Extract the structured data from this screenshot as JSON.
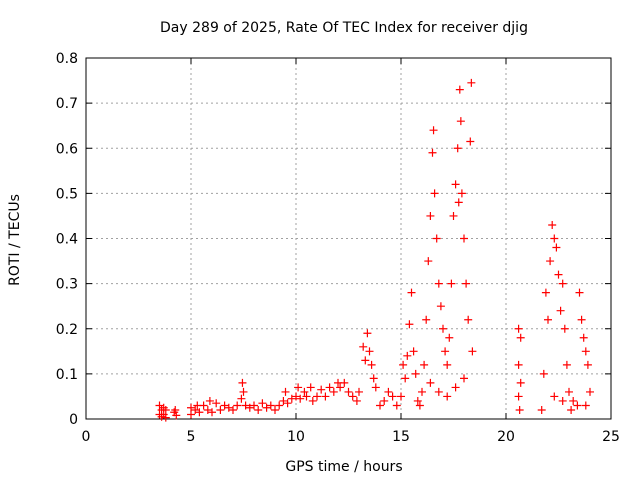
{
  "chart_data": {
    "type": "scatter",
    "title": "Day 289 of 2025, Rate Of TEC Index for receiver djig",
    "xlabel": "GPS time / hours",
    "ylabel": "ROTI / TECUs",
    "xlim": [
      0,
      25
    ],
    "ylim": [
      0,
      0.8
    ],
    "xticks": [
      "0",
      "5",
      "10",
      "15",
      "20",
      "25"
    ],
    "yticks": [
      "0",
      "0.1",
      "0.2",
      "0.3",
      "0.4",
      "0.5",
      "0.6",
      "0.7",
      "0.8"
    ],
    "grid": true,
    "marker": "+",
    "color": "#ff0000",
    "points": [
      [
        3.5,
        0.03
      ],
      [
        3.5,
        0.01
      ],
      [
        3.6,
        0.02
      ],
      [
        3.6,
        0.005
      ],
      [
        3.7,
        0.025
      ],
      [
        3.7,
        0.01
      ],
      [
        3.8,
        0.02
      ],
      [
        3.8,
        0.003
      ],
      [
        4.2,
        0.015
      ],
      [
        4.25,
        0.02
      ],
      [
        4.3,
        0.008
      ],
      [
        5.0,
        0.01
      ],
      [
        5.0,
        0.025
      ],
      [
        5.2,
        0.02
      ],
      [
        5.3,
        0.03
      ],
      [
        5.4,
        0.015
      ],
      [
        5.6,
        0.03
      ],
      [
        5.8,
        0.02
      ],
      [
        5.9,
        0.04
      ],
      [
        6.0,
        0.015
      ],
      [
        6.2,
        0.035
      ],
      [
        6.4,
        0.02
      ],
      [
        6.6,
        0.03
      ],
      [
        6.8,
        0.025
      ],
      [
        7.0,
        0.02
      ],
      [
        7.2,
        0.03
      ],
      [
        7.4,
        0.045
      ],
      [
        7.45,
        0.08
      ],
      [
        7.5,
        0.06
      ],
      [
        7.6,
        0.03
      ],
      [
        7.8,
        0.025
      ],
      [
        8.0,
        0.03
      ],
      [
        8.2,
        0.02
      ],
      [
        8.4,
        0.035
      ],
      [
        8.6,
        0.025
      ],
      [
        8.8,
        0.03
      ],
      [
        9.0,
        0.02
      ],
      [
        9.2,
        0.03
      ],
      [
        9.4,
        0.04
      ],
      [
        9.5,
        0.06
      ],
      [
        9.6,
        0.035
      ],
      [
        9.8,
        0.045
      ],
      [
        10.0,
        0.05
      ],
      [
        10.1,
        0.07
      ],
      [
        10.2,
        0.045
      ],
      [
        10.4,
        0.06
      ],
      [
        10.5,
        0.05
      ],
      [
        10.7,
        0.07
      ],
      [
        10.8,
        0.04
      ],
      [
        11.0,
        0.05
      ],
      [
        11.2,
        0.065
      ],
      [
        11.4,
        0.05
      ],
      [
        11.6,
        0.07
      ],
      [
        11.8,
        0.06
      ],
      [
        12.0,
        0.08
      ],
      [
        12.1,
        0.07
      ],
      [
        12.3,
        0.08
      ],
      [
        12.5,
        0.06
      ],
      [
        12.7,
        0.05
      ],
      [
        12.9,
        0.04
      ],
      [
        13.0,
        0.06
      ],
      [
        13.2,
        0.16
      ],
      [
        13.3,
        0.13
      ],
      [
        13.4,
        0.19
      ],
      [
        13.5,
        0.15
      ],
      [
        13.6,
        0.12
      ],
      [
        13.7,
        0.09
      ],
      [
        13.8,
        0.07
      ],
      [
        14.0,
        0.03
      ],
      [
        14.2,
        0.04
      ],
      [
        14.4,
        0.06
      ],
      [
        14.6,
        0.05
      ],
      [
        14.8,
        0.03
      ],
      [
        15.0,
        0.05
      ],
      [
        15.1,
        0.12
      ],
      [
        15.2,
        0.09
      ],
      [
        15.3,
        0.14
      ],
      [
        15.4,
        0.21
      ],
      [
        15.5,
        0.28
      ],
      [
        15.6,
        0.15
      ],
      [
        15.7,
        0.1
      ],
      [
        15.8,
        0.04
      ],
      [
        15.9,
        0.03
      ],
      [
        16.0,
        0.06
      ],
      [
        16.1,
        0.12
      ],
      [
        16.2,
        0.22
      ],
      [
        16.3,
        0.35
      ],
      [
        16.4,
        0.45
      ],
      [
        16.5,
        0.59
      ],
      [
        16.55,
        0.64
      ],
      [
        16.6,
        0.5
      ],
      [
        16.7,
        0.4
      ],
      [
        16.8,
        0.3
      ],
      [
        16.9,
        0.25
      ],
      [
        17.0,
        0.2
      ],
      [
        17.1,
        0.15
      ],
      [
        17.2,
        0.12
      ],
      [
        17.3,
        0.18
      ],
      [
        17.4,
        0.3
      ],
      [
        17.5,
        0.45
      ],
      [
        17.6,
        0.52
      ],
      [
        17.7,
        0.6
      ],
      [
        17.75,
        0.48
      ],
      [
        17.8,
        0.73
      ],
      [
        17.85,
        0.66
      ],
      [
        17.9,
        0.5
      ],
      [
        18.0,
        0.4
      ],
      [
        18.1,
        0.3
      ],
      [
        18.2,
        0.22
      ],
      [
        18.3,
        0.615
      ],
      [
        18.35,
        0.745
      ],
      [
        18.4,
        0.15
      ],
      [
        16.4,
        0.08
      ],
      [
        16.8,
        0.06
      ],
      [
        17.2,
        0.05
      ],
      [
        17.6,
        0.07
      ],
      [
        18.0,
        0.09
      ],
      [
        20.6,
        0.2
      ],
      [
        20.7,
        0.18
      ],
      [
        20.6,
        0.12
      ],
      [
        20.7,
        0.08
      ],
      [
        20.6,
        0.05
      ],
      [
        20.65,
        0.02
      ],
      [
        21.7,
        0.02
      ],
      [
        21.8,
        0.1
      ],
      [
        21.9,
        0.28
      ],
      [
        22.0,
        0.22
      ],
      [
        22.1,
        0.35
      ],
      [
        22.2,
        0.43
      ],
      [
        22.3,
        0.4
      ],
      [
        22.4,
        0.38
      ],
      [
        22.5,
        0.32
      ],
      [
        22.6,
        0.24
      ],
      [
        22.7,
        0.3
      ],
      [
        22.8,
        0.2
      ],
      [
        22.9,
        0.12
      ],
      [
        23.0,
        0.06
      ],
      [
        23.2,
        0.04
      ],
      [
        23.4,
        0.03
      ],
      [
        23.5,
        0.28
      ],
      [
        23.6,
        0.22
      ],
      [
        23.7,
        0.18
      ],
      [
        23.8,
        0.15
      ],
      [
        23.9,
        0.12
      ],
      [
        24.0,
        0.06
      ],
      [
        22.3,
        0.05
      ],
      [
        22.7,
        0.04
      ],
      [
        23.1,
        0.02
      ],
      [
        23.8,
        0.03
      ]
    ]
  }
}
